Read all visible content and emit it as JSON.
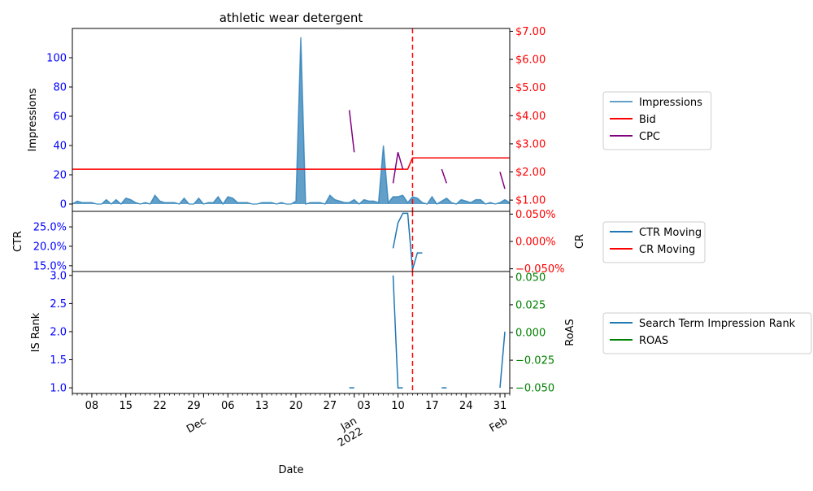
{
  "chart_data": {
    "type": "line",
    "title": "athletic wear detergent",
    "xlabel": "Date",
    "x_ticks": {
      "days": [
        {
          "date": "2021-11-08",
          "label": "08"
        },
        {
          "date": "2021-11-15",
          "label": "15"
        },
        {
          "date": "2021-11-22",
          "label": "22"
        },
        {
          "date": "2021-11-29",
          "label": "29"
        },
        {
          "date": "2021-12-06",
          "label": "06"
        },
        {
          "date": "2021-12-13",
          "label": "13"
        },
        {
          "date": "2021-12-20",
          "label": "20"
        },
        {
          "date": "2021-12-27",
          "label": "27"
        },
        {
          "date": "2022-01-03",
          "label": "03"
        },
        {
          "date": "2022-01-10",
          "label": "10"
        },
        {
          "date": "2022-01-17",
          "label": "17"
        },
        {
          "date": "2022-01-24",
          "label": "24"
        },
        {
          "date": "2022-01-31",
          "label": "31"
        }
      ],
      "months": [
        {
          "date": "2021-12-01",
          "label": "Dec"
        },
        {
          "date": "2022-01-01",
          "label": "Jan\n2022"
        },
        {
          "date": "2022-02-01",
          "label": "Feb"
        }
      ]
    },
    "xlim": [
      "2021-11-04",
      "2022-02-02"
    ],
    "event_line_date": "2022-01-13",
    "panels": [
      {
        "id": "top",
        "left_axis": {
          "label": "Impressions",
          "ylim": [
            -5,
            120
          ],
          "ticks": [
            0,
            20,
            40,
            60,
            80,
            100
          ],
          "tick_labels": [
            "0",
            "20",
            "40",
            "60",
            "80",
            "100"
          ],
          "tick_color": "#0000ff"
        },
        "right_axis": {
          "label": "",
          "ylim": [
            0.6,
            7.1
          ],
          "ticks": [
            1,
            2,
            3,
            4,
            5,
            6,
            7
          ],
          "tick_labels": [
            "$1.00",
            "$2.00",
            "$3.00",
            "$4.00",
            "$5.00",
            "$6.00",
            "$7.00"
          ],
          "tick_color": "#ff0000"
        },
        "series": [
          {
            "name": "Impressions",
            "axis": "left",
            "style": "area",
            "color": "#1f77b4",
            "points": [
              [
                "2021-11-04",
                0
              ],
              [
                "2021-11-05",
                2
              ],
              [
                "2021-11-06",
                1
              ],
              [
                "2021-11-07",
                1
              ],
              [
                "2021-11-08",
                1
              ],
              [
                "2021-11-09",
                0
              ],
              [
                "2021-11-10",
                0
              ],
              [
                "2021-11-11",
                3
              ],
              [
                "2021-11-12",
                0
              ],
              [
                "2021-11-13",
                3
              ],
              [
                "2021-11-14",
                0
              ],
              [
                "2021-11-15",
                4
              ],
              [
                "2021-11-16",
                3
              ],
              [
                "2021-11-17",
                1
              ],
              [
                "2021-11-18",
                0
              ],
              [
                "2021-11-19",
                1
              ],
              [
                "2021-11-20",
                0
              ],
              [
                "2021-11-21",
                6
              ],
              [
                "2021-11-22",
                2
              ],
              [
                "2021-11-23",
                1
              ],
              [
                "2021-11-24",
                1
              ],
              [
                "2021-11-25",
                1
              ],
              [
                "2021-11-26",
                0
              ],
              [
                "2021-11-27",
                4
              ],
              [
                "2021-11-28",
                0
              ],
              [
                "2021-11-29",
                0
              ],
              [
                "2021-11-30",
                4
              ],
              [
                "2021-12-01",
                0
              ],
              [
                "2021-12-02",
                1
              ],
              [
                "2021-12-03",
                1
              ],
              [
                "2021-12-04",
                5
              ],
              [
                "2021-12-05",
                0
              ],
              [
                "2021-12-06",
                5
              ],
              [
                "2021-12-07",
                4
              ],
              [
                "2021-12-08",
                1
              ],
              [
                "2021-12-09",
                1
              ],
              [
                "2021-12-10",
                1
              ],
              [
                "2021-12-11",
                0
              ],
              [
                "2021-12-12",
                0
              ],
              [
                "2021-12-13",
                1
              ],
              [
                "2021-12-14",
                1
              ],
              [
                "2021-12-15",
                1
              ],
              [
                "2021-12-16",
                0
              ],
              [
                "2021-12-17",
                1
              ],
              [
                "2021-12-18",
                0
              ],
              [
                "2021-12-19",
                0
              ],
              [
                "2021-12-20",
                2
              ],
              [
                "2021-12-21",
                114
              ],
              [
                "2021-12-22",
                0
              ],
              [
                "2021-12-23",
                1
              ],
              [
                "2021-12-24",
                1
              ],
              [
                "2021-12-25",
                1
              ],
              [
                "2021-12-26",
                0
              ],
              [
                "2021-12-27",
                6
              ],
              [
                "2021-12-28",
                3
              ],
              [
                "2021-12-29",
                2
              ],
              [
                "2021-12-30",
                1
              ],
              [
                "2021-12-31",
                1
              ],
              [
                "2022-01-01",
                3
              ],
              [
                "2022-01-02",
                0
              ],
              [
                "2022-01-03",
                3
              ],
              [
                "2022-01-04",
                2
              ],
              [
                "2022-01-05",
                2
              ],
              [
                "2022-01-06",
                1
              ],
              [
                "2022-01-07",
                40
              ],
              [
                "2022-01-08",
                1
              ],
              [
                "2022-01-09",
                5
              ],
              [
                "2022-01-10",
                5
              ],
              [
                "2022-01-11",
                6
              ],
              [
                "2022-01-12",
                1
              ],
              [
                "2022-01-13",
                5
              ],
              [
                "2022-01-14",
                4
              ],
              [
                "2022-01-15",
                1
              ],
              [
                "2022-01-16",
                0
              ],
              [
                "2022-01-17",
                5
              ],
              [
                "2022-01-18",
                0
              ],
              [
                "2022-01-19",
                2
              ],
              [
                "2022-01-20",
                4
              ],
              [
                "2022-01-21",
                1
              ],
              [
                "2022-01-22",
                0
              ],
              [
                "2022-01-23",
                3
              ],
              [
                "2022-01-24",
                2
              ],
              [
                "2022-01-25",
                1
              ],
              [
                "2022-01-26",
                3
              ],
              [
                "2022-01-27",
                3
              ],
              [
                "2022-01-28",
                0
              ],
              [
                "2022-01-29",
                1
              ],
              [
                "2022-01-30",
                0
              ],
              [
                "2022-01-31",
                1
              ],
              [
                "2022-02-01",
                3
              ],
              [
                "2022-02-02",
                1
              ]
            ]
          },
          {
            "name": "Bid",
            "axis": "right",
            "style": "line",
            "color": "#ff0000",
            "segments": [
              [
                [
                  "2021-11-04",
                  2.1
                ],
                [
                  "2022-01-12",
                  2.1
                ],
                [
                  "2022-01-13",
                  2.5
                ],
                [
                  "2022-02-02",
                  2.5
                ]
              ]
            ]
          },
          {
            "name": "CPC",
            "axis": "right",
            "style": "line",
            "color": "#800080",
            "segments": [
              [
                [
                  "2021-12-31",
                  4.2
                ],
                [
                  "2022-01-01",
                  2.7
                ]
              ],
              [
                [
                  "2022-01-09",
                  1.6
                ],
                [
                  "2022-01-10",
                  2.7
                ],
                [
                  "2022-01-11",
                  2.1
                ]
              ],
              [
                [
                  "2022-01-19",
                  2.1
                ],
                [
                  "2022-01-20",
                  1.6
                ]
              ],
              [
                [
                  "2022-01-31",
                  2.0
                ],
                [
                  "2022-02-01",
                  1.4
                ]
              ]
            ]
          }
        ]
      },
      {
        "id": "middle",
        "left_axis": {
          "label": "CTR",
          "ylim": [
            13.5,
            29
          ],
          "ticks": [
            15,
            20,
            25
          ],
          "tick_labels": [
            "15.0%",
            "20.0%",
            "25.0%"
          ],
          "tick_color": "#0000ff"
        },
        "right_axis": {
          "label": "CR",
          "ylim": [
            -0.055,
            0.055
          ],
          "ticks": [
            -0.05,
            0,
            0.05
          ],
          "tick_labels": [
            "−0.050%",
            "0.000%",
            "0.050%"
          ],
          "tick_color": "#ff0000"
        },
        "series": [
          {
            "name": "CTR Moving",
            "axis": "left",
            "style": "line",
            "color": "#1f77b4",
            "segments": [
              [
                [
                  "2022-01-09",
                  19.5
                ],
                [
                  "2022-01-10",
                  26
                ],
                [
                  "2022-01-11",
                  28.5
                ],
                [
                  "2022-01-12",
                  28.5
                ],
                [
                  "2022-01-13",
                  14
                ],
                [
                  "2022-01-14",
                  18.3
                ],
                [
                  "2022-01-15",
                  18.3
                ]
              ]
            ]
          },
          {
            "name": "CR Moving",
            "axis": "right",
            "style": "line",
            "color": "#ff0000",
            "segments": []
          }
        ]
      },
      {
        "id": "bottom",
        "left_axis": {
          "label": "IS Rank",
          "ylim": [
            0.9,
            3.07
          ],
          "ticks": [
            1,
            1.5,
            2,
            2.5,
            3
          ],
          "tick_labels": [
            "1.0",
            "1.5",
            "2.0",
            "2.5",
            "3.0"
          ],
          "tick_color": "#0000ff"
        },
        "right_axis": {
          "label": "RoAS",
          "ylim": [
            -0.055,
            0.055
          ],
          "ticks": [
            -0.05,
            -0.025,
            0,
            0.025,
            0.05
          ],
          "tick_labels": [
            "−0.050",
            "−0.025",
            "0.000",
            "0.025",
            "0.050"
          ],
          "tick_color": "#008000"
        },
        "series": [
          {
            "name": "Search Term Impression Rank",
            "axis": "left",
            "style": "line",
            "color": "#1f77b4",
            "segments": [
              [
                [
                  "2021-12-31",
                  1
                ],
                [
                  "2022-01-01",
                  1
                ]
              ],
              [
                [
                  "2022-01-09",
                  3
                ],
                [
                  "2022-01-10",
                  1
                ],
                [
                  "2022-01-11",
                  1
                ]
              ],
              [
                [
                  "2022-01-19",
                  1
                ],
                [
                  "2022-01-20",
                  1
                ]
              ],
              [
                [
                  "2022-01-31",
                  1
                ],
                [
                  "2022-02-01",
                  2
                ]
              ]
            ]
          },
          {
            "name": "ROAS",
            "axis": "right",
            "style": "line",
            "color": "#008000",
            "segments": []
          }
        ]
      }
    ],
    "legends": [
      {
        "panel": "top",
        "entries": [
          {
            "label": "Impressions",
            "color": "#1f77b4",
            "opacity": 0.7
          },
          {
            "label": "Bid",
            "color": "#ff0000"
          },
          {
            "label": "CPC",
            "color": "#800080"
          }
        ]
      },
      {
        "panel": "middle",
        "entries": [
          {
            "label": "CTR Moving",
            "color": "#1f77b4"
          },
          {
            "label": "CR Moving",
            "color": "#ff0000"
          }
        ]
      },
      {
        "panel": "bottom",
        "entries": [
          {
            "label": "Search Term Impression Rank",
            "color": "#1f77b4"
          },
          {
            "label": "ROAS",
            "color": "#008000"
          }
        ]
      }
    ],
    "legend_placement": "right"
  }
}
